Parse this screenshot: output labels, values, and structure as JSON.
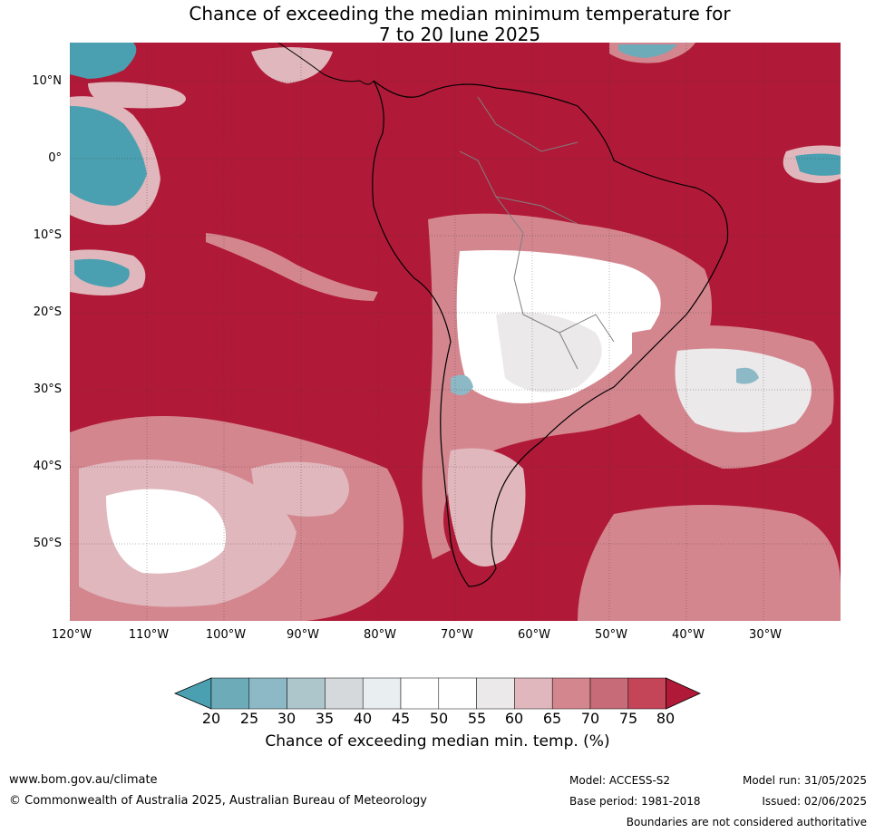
{
  "title": {
    "line1": "Chance of exceeding the median minimum temperature for",
    "line2": "7 to 20 June 2025"
  },
  "map": {
    "latitude_labels": [
      "10°N",
      "0°",
      "10°S",
      "20°S",
      "30°S",
      "40°S",
      "50°S"
    ],
    "longitude_labels": [
      "120°W",
      "110°W",
      "100°W",
      "90°W",
      "80°W",
      "70°W",
      "60°W",
      "50°W",
      "40°W",
      "30°W"
    ],
    "colors": {
      "very_high": "#b01a38",
      "high": "#c44458",
      "mid_high": "#d4868f",
      "low_high": "#e0b7bc",
      "neutral": "#ffffff",
      "low": "#4aa0b0",
      "boundary": "#000000",
      "border": "#808080"
    }
  },
  "colorbar": {
    "ticks": [
      "20",
      "25",
      "30",
      "35",
      "40",
      "45",
      "50",
      "55",
      "60",
      "65",
      "70",
      "75",
      "80"
    ],
    "colors": [
      "#4aa0b0",
      "#6eabb8",
      "#8db9c6",
      "#adc6cc",
      "#d6d9dc",
      "#e9eef0",
      "#ffffff",
      "#ffffff",
      "#ebe9ea",
      "#e0b7bc",
      "#d4868f",
      "#c66b77",
      "#c44458",
      "#b01a38"
    ],
    "label": "Chance of exceeding median min. temp. (%)"
  },
  "footer": {
    "website": "www.bom.gov.au/climate",
    "copyright": "© Commonwealth of Australia 2025, Australian Bureau of Meteorology",
    "model": "Model: ACCESS-S2",
    "base_period": "Base period: 1981-2018",
    "model_run": "Model run: 31/05/2025",
    "issued": "Issued: 02/06/2025",
    "disclaimer": "Boundaries are not considered authoritative"
  }
}
